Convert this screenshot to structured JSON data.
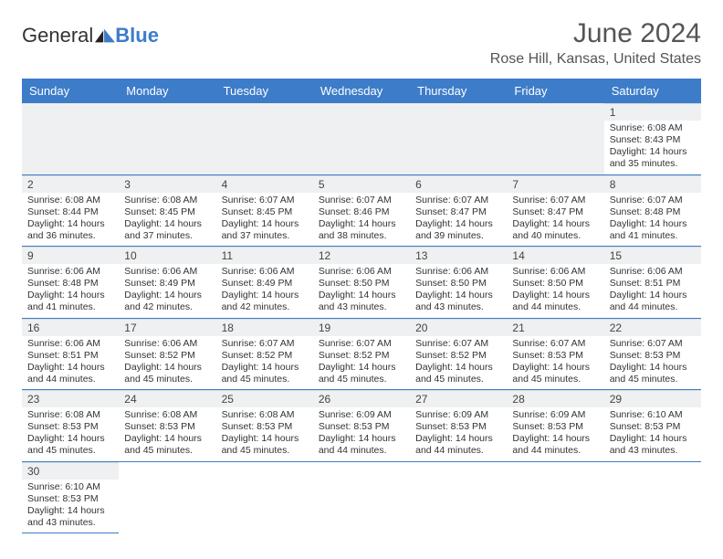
{
  "logo": {
    "text_general": "General",
    "text_blue": "Blue"
  },
  "title": "June 2024",
  "location": "Rose Hill, Kansas, United States",
  "colors": {
    "header_bg": "#3d7cc9",
    "header_text": "#ffffff",
    "daynum_bg": "#eef0f1",
    "border": "#3d7cc9",
    "body_text": "#333333",
    "title_text": "#555555"
  },
  "weekdays": [
    "Sunday",
    "Monday",
    "Tuesday",
    "Wednesday",
    "Thursday",
    "Friday",
    "Saturday"
  ],
  "leading_blanks": 6,
  "trailing_blanks": 6,
  "days": [
    {
      "num": "1",
      "sunrise": "6:08 AM",
      "sunset": "8:43 PM",
      "daylight": "14 hours and 35 minutes."
    },
    {
      "num": "2",
      "sunrise": "6:08 AM",
      "sunset": "8:44 PM",
      "daylight": "14 hours and 36 minutes."
    },
    {
      "num": "3",
      "sunrise": "6:08 AM",
      "sunset": "8:45 PM",
      "daylight": "14 hours and 37 minutes."
    },
    {
      "num": "4",
      "sunrise": "6:07 AM",
      "sunset": "8:45 PM",
      "daylight": "14 hours and 37 minutes."
    },
    {
      "num": "5",
      "sunrise": "6:07 AM",
      "sunset": "8:46 PM",
      "daylight": "14 hours and 38 minutes."
    },
    {
      "num": "6",
      "sunrise": "6:07 AM",
      "sunset": "8:47 PM",
      "daylight": "14 hours and 39 minutes."
    },
    {
      "num": "7",
      "sunrise": "6:07 AM",
      "sunset": "8:47 PM",
      "daylight": "14 hours and 40 minutes."
    },
    {
      "num": "8",
      "sunrise": "6:07 AM",
      "sunset": "8:48 PM",
      "daylight": "14 hours and 41 minutes."
    },
    {
      "num": "9",
      "sunrise": "6:06 AM",
      "sunset": "8:48 PM",
      "daylight": "14 hours and 41 minutes."
    },
    {
      "num": "10",
      "sunrise": "6:06 AM",
      "sunset": "8:49 PM",
      "daylight": "14 hours and 42 minutes."
    },
    {
      "num": "11",
      "sunrise": "6:06 AM",
      "sunset": "8:49 PM",
      "daylight": "14 hours and 42 minutes."
    },
    {
      "num": "12",
      "sunrise": "6:06 AM",
      "sunset": "8:50 PM",
      "daylight": "14 hours and 43 minutes."
    },
    {
      "num": "13",
      "sunrise": "6:06 AM",
      "sunset": "8:50 PM",
      "daylight": "14 hours and 43 minutes."
    },
    {
      "num": "14",
      "sunrise": "6:06 AM",
      "sunset": "8:50 PM",
      "daylight": "14 hours and 44 minutes."
    },
    {
      "num": "15",
      "sunrise": "6:06 AM",
      "sunset": "8:51 PM",
      "daylight": "14 hours and 44 minutes."
    },
    {
      "num": "16",
      "sunrise": "6:06 AM",
      "sunset": "8:51 PM",
      "daylight": "14 hours and 44 minutes."
    },
    {
      "num": "17",
      "sunrise": "6:06 AM",
      "sunset": "8:52 PM",
      "daylight": "14 hours and 45 minutes."
    },
    {
      "num": "18",
      "sunrise": "6:07 AM",
      "sunset": "8:52 PM",
      "daylight": "14 hours and 45 minutes."
    },
    {
      "num": "19",
      "sunrise": "6:07 AM",
      "sunset": "8:52 PM",
      "daylight": "14 hours and 45 minutes."
    },
    {
      "num": "20",
      "sunrise": "6:07 AM",
      "sunset": "8:52 PM",
      "daylight": "14 hours and 45 minutes."
    },
    {
      "num": "21",
      "sunrise": "6:07 AM",
      "sunset": "8:53 PM",
      "daylight": "14 hours and 45 minutes."
    },
    {
      "num": "22",
      "sunrise": "6:07 AM",
      "sunset": "8:53 PM",
      "daylight": "14 hours and 45 minutes."
    },
    {
      "num": "23",
      "sunrise": "6:08 AM",
      "sunset": "8:53 PM",
      "daylight": "14 hours and 45 minutes."
    },
    {
      "num": "24",
      "sunrise": "6:08 AM",
      "sunset": "8:53 PM",
      "daylight": "14 hours and 45 minutes."
    },
    {
      "num": "25",
      "sunrise": "6:08 AM",
      "sunset": "8:53 PM",
      "daylight": "14 hours and 45 minutes."
    },
    {
      "num": "26",
      "sunrise": "6:09 AM",
      "sunset": "8:53 PM",
      "daylight": "14 hours and 44 minutes."
    },
    {
      "num": "27",
      "sunrise": "6:09 AM",
      "sunset": "8:53 PM",
      "daylight": "14 hours and 44 minutes."
    },
    {
      "num": "28",
      "sunrise": "6:09 AM",
      "sunset": "8:53 PM",
      "daylight": "14 hours and 44 minutes."
    },
    {
      "num": "29",
      "sunrise": "6:10 AM",
      "sunset": "8:53 PM",
      "daylight": "14 hours and 43 minutes."
    },
    {
      "num": "30",
      "sunrise": "6:10 AM",
      "sunset": "8:53 PM",
      "daylight": "14 hours and 43 minutes."
    }
  ],
  "labels": {
    "sunrise": "Sunrise:",
    "sunset": "Sunset:",
    "daylight": "Daylight:"
  }
}
